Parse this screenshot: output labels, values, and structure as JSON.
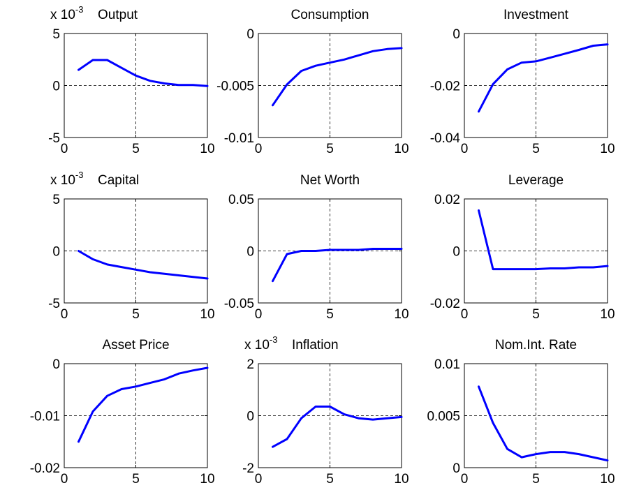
{
  "colors": {
    "line": "#0000ff",
    "axes": "#000000",
    "grid": "#000000",
    "background": "#ffffff"
  },
  "chart_data": [
    {
      "type": "line",
      "title": "Output",
      "exponent": {
        "prefix": "x 10",
        "power": "-3"
      },
      "x": [
        1,
        2,
        3,
        4,
        5,
        6,
        7,
        8,
        9,
        10
      ],
      "series": [
        {
          "values": [
            1.5,
            2.45,
            2.45,
            1.7,
            0.95,
            0.45,
            0.2,
            0.05,
            0.05,
            -0.05
          ]
        }
      ],
      "xlim": [
        0,
        10
      ],
      "ylim": [
        -5,
        5
      ],
      "xticks": [
        0,
        5,
        10
      ],
      "xtick_labels": [
        "0",
        "5",
        "10"
      ],
      "yticks": [
        -5,
        0,
        5
      ],
      "ytick_labels": [
        "-5",
        "0",
        "5"
      ],
      "grid": true,
      "grid_style": "dashed"
    },
    {
      "type": "line",
      "title": "Consumption",
      "x": [
        1,
        2,
        3,
        4,
        5,
        6,
        7,
        8,
        9,
        10
      ],
      "series": [
        {
          "values": [
            -0.0069,
            -0.0049,
            -0.0036,
            -0.0031,
            -0.0028,
            -0.0025,
            -0.0021,
            -0.0017,
            -0.0015,
            -0.0014
          ]
        }
      ],
      "xlim": [
        0,
        10
      ],
      "ylim": [
        -0.01,
        0
      ],
      "xticks": [
        0,
        5,
        10
      ],
      "xtick_labels": [
        "0",
        "5",
        "10"
      ],
      "yticks": [
        -0.01,
        -0.005,
        0
      ],
      "ytick_labels": [
        "-0.01",
        "-0.005",
        "0"
      ],
      "grid": true,
      "grid_style": "dashed"
    },
    {
      "type": "line",
      "title": "Investment",
      "x": [
        1,
        2,
        3,
        4,
        5,
        6,
        7,
        8,
        9,
        10
      ],
      "series": [
        {
          "values": [
            -0.03,
            -0.0195,
            -0.0138,
            -0.0112,
            -0.0107,
            -0.0093,
            -0.0078,
            -0.0063,
            -0.0047,
            -0.0042
          ]
        }
      ],
      "xlim": [
        0,
        10
      ],
      "ylim": [
        -0.04,
        0
      ],
      "xticks": [
        0,
        5,
        10
      ],
      "xtick_labels": [
        "0",
        "5",
        "10"
      ],
      "yticks": [
        -0.04,
        -0.02,
        0
      ],
      "ytick_labels": [
        "-0.04",
        "-0.02",
        "0"
      ],
      "grid": true,
      "grid_style": "dashed"
    },
    {
      "type": "line",
      "title": "Capital",
      "exponent": {
        "prefix": "x 10",
        "power": "-3"
      },
      "x": [
        1,
        2,
        3,
        4,
        5,
        6,
        7,
        8,
        9,
        10
      ],
      "series": [
        {
          "values": [
            0,
            -0.8,
            -1.3,
            -1.55,
            -1.8,
            -2.05,
            -2.2,
            -2.35,
            -2.5,
            -2.65
          ]
        }
      ],
      "xlim": [
        0,
        10
      ],
      "ylim": [
        -5,
        5
      ],
      "xticks": [
        0,
        5,
        10
      ],
      "xtick_labels": [
        "0",
        "5",
        "10"
      ],
      "yticks": [
        -5,
        0,
        5
      ],
      "ytick_labels": [
        "-5",
        "0",
        "5"
      ],
      "grid": true,
      "grid_style": "dashed"
    },
    {
      "type": "line",
      "title": "Net Worth",
      "x": [
        1,
        2,
        3,
        4,
        5,
        6,
        7,
        8,
        9,
        10
      ],
      "series": [
        {
          "values": [
            -0.029,
            -0.003,
            0,
            0,
            0.001,
            0.001,
            0.001,
            0.002,
            0.002,
            0.002
          ]
        }
      ],
      "xlim": [
        0,
        10
      ],
      "ylim": [
        -0.05,
        0.05
      ],
      "xticks": [
        0,
        5,
        10
      ],
      "xtick_labels": [
        "0",
        "5",
        "10"
      ],
      "yticks": [
        -0.05,
        0,
        0.05
      ],
      "ytick_labels": [
        "-0.05",
        "0",
        "0.05"
      ],
      "grid": true,
      "grid_style": "dashed"
    },
    {
      "type": "line",
      "title": "Leverage",
      "x": [
        1,
        2,
        3,
        4,
        5,
        6,
        7,
        8,
        9,
        10
      ],
      "series": [
        {
          "values": [
            0.0156,
            -0.007,
            -0.007,
            -0.007,
            -0.007,
            -0.0067,
            -0.0067,
            -0.0063,
            -0.0063,
            -0.0058
          ]
        }
      ],
      "xlim": [
        0,
        10
      ],
      "ylim": [
        -0.02,
        0.02
      ],
      "xticks": [
        0,
        5,
        10
      ],
      "xtick_labels": [
        "0",
        "5",
        "10"
      ],
      "yticks": [
        -0.02,
        0,
        0.02
      ],
      "ytick_labels": [
        "-0.02",
        "0",
        "0.02"
      ],
      "grid": true,
      "grid_style": "dashed"
    },
    {
      "type": "line",
      "title": "Asset Price",
      "x": [
        1,
        2,
        3,
        4,
        5,
        6,
        7,
        8,
        9,
        10
      ],
      "series": [
        {
          "values": [
            -0.015,
            -0.0092,
            -0.0062,
            -0.0049,
            -0.0044,
            -0.0037,
            -0.003,
            -0.0019,
            -0.0013,
            -0.0008
          ]
        }
      ],
      "xlim": [
        0,
        10
      ],
      "ylim": [
        -0.02,
        0
      ],
      "xticks": [
        0,
        5,
        10
      ],
      "xtick_labels": [
        "0",
        "5",
        "10"
      ],
      "yticks": [
        -0.02,
        -0.01,
        0
      ],
      "ytick_labels": [
        "-0.02",
        "-0.01",
        "0"
      ],
      "grid": true,
      "grid_style": "dashed"
    },
    {
      "type": "line",
      "title": "Inflation",
      "exponent": {
        "prefix": "x 10",
        "power": "-3"
      },
      "x": [
        1,
        2,
        3,
        4,
        5,
        6,
        7,
        8,
        9,
        10
      ],
      "series": [
        {
          "values": [
            -1.2,
            -0.9,
            -0.1,
            0.35,
            0.35,
            0.05,
            -0.1,
            -0.15,
            -0.1,
            -0.05
          ]
        }
      ],
      "xlim": [
        0,
        10
      ],
      "ylim": [
        -2,
        2
      ],
      "xticks": [
        0,
        5,
        10
      ],
      "xtick_labels": [
        "0",
        "5",
        "10"
      ],
      "yticks": [
        -2,
        0,
        2
      ],
      "ytick_labels": [
        "-2",
        "0",
        "2"
      ],
      "grid": true,
      "grid_style": "dashed"
    },
    {
      "type": "line",
      "title": "Nom.Int. Rate",
      "x": [
        1,
        2,
        3,
        4,
        5,
        6,
        7,
        8,
        9,
        10
      ],
      "series": [
        {
          "values": [
            0.0078,
            0.0043,
            0.0018,
            0.001,
            0.0013,
            0.0015,
            0.0015,
            0.0013,
            0.001,
            0.0007
          ]
        }
      ],
      "xlim": [
        0,
        10
      ],
      "ylim": [
        0,
        0.01
      ],
      "xticks": [
        0,
        5,
        10
      ],
      "xtick_labels": [
        "0",
        "5",
        "10"
      ],
      "yticks": [
        0,
        0.005,
        0.01
      ],
      "ytick_labels": [
        "0",
        "0.005",
        "0.01"
      ],
      "grid": true,
      "grid_style": "dashed"
    }
  ]
}
